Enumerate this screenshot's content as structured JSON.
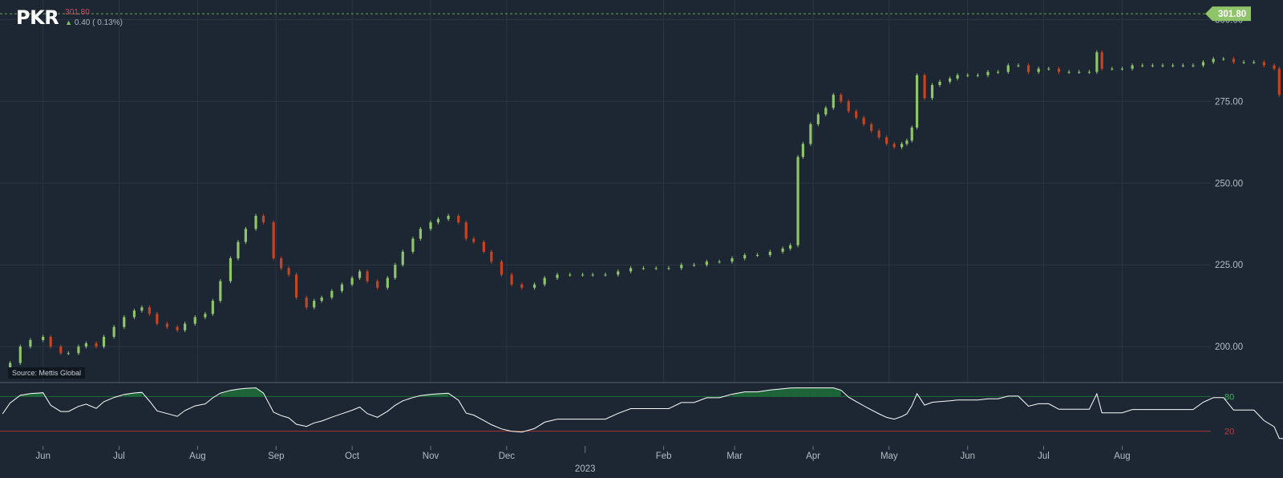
{
  "header": {
    "symbol": "PKR",
    "last_price": "301.80",
    "change": "0.40 ( 0.13%)",
    "change_direction_icon": "up-arrow-icon"
  },
  "source_label": "Source: Mettis Global",
  "price_tag": "301.80",
  "colors": {
    "background": "#1c2733",
    "up": "#8fc46a",
    "down": "#c8431f",
    "grid": "#2a3643",
    "oscillator_line": "#ffffff",
    "overbought_fill": "#1f6b3a",
    "oversold_line": "#c23b3b"
  },
  "chart_data": [
    {
      "type": "candlestick",
      "title": "",
      "y_axis_side": "right",
      "ylim": [
        189,
        306
      ],
      "y_ticks": [
        "200.00",
        "225.00",
        "250.00",
        "275.00",
        "300.00"
      ],
      "x_ticks": [
        "Jun",
        "Jul",
        "Aug",
        "Sep",
        "Oct",
        "Nov",
        "Dec",
        "Feb",
        "Mar",
        "Apr",
        "May",
        "Jun",
        "Jul",
        "Aug"
      ],
      "year_label": "2023",
      "last_price_line": 301.8,
      "grid": true,
      "x_start": "2022-05-15",
      "x_end": "2023-09-05",
      "closes": [
        [
          "2022-05-16",
          192
        ],
        [
          "2022-05-19",
          195
        ],
        [
          "2022-05-23",
          200
        ],
        [
          "2022-05-27",
          202
        ],
        [
          "2022-06-01",
          203
        ],
        [
          "2022-06-04",
          200
        ],
        [
          "2022-06-08",
          198
        ],
        [
          "2022-06-11",
          198
        ],
        [
          "2022-06-15",
          200
        ],
        [
          "2022-06-18",
          201
        ],
        [
          "2022-06-22",
          200
        ],
        [
          "2022-06-25",
          203
        ],
        [
          "2022-06-29",
          206
        ],
        [
          "2022-07-03",
          209
        ],
        [
          "2022-07-07",
          211
        ],
        [
          "2022-07-10",
          212
        ],
        [
          "2022-07-13",
          210
        ],
        [
          "2022-07-16",
          207
        ],
        [
          "2022-07-20",
          206
        ],
        [
          "2022-07-24",
          205
        ],
        [
          "2022-07-27",
          207
        ],
        [
          "2022-07-31",
          209
        ],
        [
          "2022-08-04",
          210
        ],
        [
          "2022-08-07",
          214
        ],
        [
          "2022-08-10",
          220
        ],
        [
          "2022-08-14",
          227
        ],
        [
          "2022-08-17",
          232
        ],
        [
          "2022-08-20",
          236
        ],
        [
          "2022-08-24",
          240
        ],
        [
          "2022-08-27",
          238
        ],
        [
          "2022-08-31",
          227
        ],
        [
          "2022-09-03",
          224
        ],
        [
          "2022-09-06",
          222
        ],
        [
          "2022-09-09",
          215
        ],
        [
          "2022-09-13",
          212
        ],
        [
          "2022-09-16",
          214
        ],
        [
          "2022-09-19",
          215
        ],
        [
          "2022-09-23",
          217
        ],
        [
          "2022-09-27",
          219
        ],
        [
          "2022-10-01",
          221
        ],
        [
          "2022-10-04",
          223
        ],
        [
          "2022-10-07",
          220
        ],
        [
          "2022-10-11",
          218
        ],
        [
          "2022-10-15",
          221
        ],
        [
          "2022-10-18",
          225
        ],
        [
          "2022-10-21",
          229
        ],
        [
          "2022-10-25",
          233
        ],
        [
          "2022-10-28",
          236
        ],
        [
          "2022-11-01",
          238
        ],
        [
          "2022-11-04",
          239
        ],
        [
          "2022-11-08",
          240
        ],
        [
          "2022-11-12",
          238
        ],
        [
          "2022-11-15",
          233
        ],
        [
          "2022-11-18",
          232
        ],
        [
          "2022-11-22",
          229
        ],
        [
          "2022-11-25",
          226
        ],
        [
          "2022-11-29",
          222
        ],
        [
          "2022-12-03",
          219
        ],
        [
          "2022-12-07",
          218
        ],
        [
          "2022-12-12",
          219
        ],
        [
          "2022-12-16",
          221
        ],
        [
          "2022-12-21",
          222
        ],
        [
          "2022-12-26",
          222
        ],
        [
          "2022-12-31",
          222
        ],
        [
          "2023-01-04",
          222
        ],
        [
          "2023-01-09",
          222
        ],
        [
          "2023-01-14",
          223
        ],
        [
          "2023-01-19",
          224
        ],
        [
          "2023-01-24",
          224
        ],
        [
          "2023-01-29",
          224
        ],
        [
          "2023-02-03",
          224
        ],
        [
          "2023-02-08",
          225
        ],
        [
          "2023-02-13",
          225
        ],
        [
          "2023-02-18",
          226
        ],
        [
          "2023-02-23",
          226
        ],
        [
          "2023-02-28",
          227
        ],
        [
          "2023-03-05",
          228
        ],
        [
          "2023-03-10",
          228
        ],
        [
          "2023-03-15",
          229
        ],
        [
          "2023-03-20",
          230
        ],
        [
          "2023-03-23",
          231
        ],
        [
          "2023-03-26",
          258
        ],
        [
          "2023-03-28",
          262
        ],
        [
          "2023-03-31",
          268
        ],
        [
          "2023-04-03",
          271
        ],
        [
          "2023-04-06",
          273
        ],
        [
          "2023-04-09",
          277
        ],
        [
          "2023-04-12",
          275
        ],
        [
          "2023-04-15",
          272
        ],
        [
          "2023-04-18",
          270
        ],
        [
          "2023-04-21",
          268
        ],
        [
          "2023-04-24",
          266
        ],
        [
          "2023-04-27",
          264
        ],
        [
          "2023-04-30",
          262
        ],
        [
          "2023-05-03",
          261
        ],
        [
          "2023-05-06",
          262
        ],
        [
          "2023-05-08",
          263
        ],
        [
          "2023-05-10",
          267
        ],
        [
          "2023-05-12",
          283
        ],
        [
          "2023-05-15",
          276
        ],
        [
          "2023-05-18",
          280
        ],
        [
          "2023-05-21",
          281
        ],
        [
          "2023-05-25",
          282
        ],
        [
          "2023-05-28",
          283
        ],
        [
          "2023-06-01",
          283
        ],
        [
          "2023-06-05",
          283
        ],
        [
          "2023-06-09",
          284
        ],
        [
          "2023-06-13",
          284
        ],
        [
          "2023-06-17",
          286
        ],
        [
          "2023-06-21",
          286
        ],
        [
          "2023-06-25",
          284
        ],
        [
          "2023-06-29",
          285
        ],
        [
          "2023-07-03",
          285
        ],
        [
          "2023-07-07",
          284
        ],
        [
          "2023-07-11",
          284
        ],
        [
          "2023-07-15",
          284
        ],
        [
          "2023-07-19",
          284
        ],
        [
          "2023-07-22",
          290
        ],
        [
          "2023-07-24",
          285
        ],
        [
          "2023-07-28",
          285
        ],
        [
          "2023-08-01",
          285
        ],
        [
          "2023-08-05",
          286
        ],
        [
          "2023-08-09",
          286
        ],
        [
          "2023-08-13",
          286
        ],
        [
          "2023-08-17",
          286
        ],
        [
          "2023-08-21",
          286
        ],
        [
          "2023-08-25",
          286
        ],
        [
          "2023-08-29",
          286
        ],
        [
          "2023-09-02",
          287
        ],
        [
          "2023-09-06",
          288
        ],
        [
          "2023-09-10",
          288
        ],
        [
          "2023-09-14",
          287
        ],
        [
          "2023-09-18",
          287
        ],
        [
          "2023-09-22",
          287
        ],
        [
          "2023-09-26",
          286
        ],
        [
          "2023-09-30",
          285
        ],
        [
          "2023-10-02",
          277
        ],
        [
          "2023-10-05",
          276
        ],
        [
          "2023-10-08",
          278
        ],
        [
          "2023-10-11",
          281
        ],
        [
          "2023-10-14",
          278
        ],
        [
          "2023-10-17",
          276
        ],
        [
          "2023-10-20",
          279
        ],
        [
          "2023-10-23",
          282
        ],
        [
          "2023-10-26",
          285
        ],
        [
          "2023-10-29",
          287
        ],
        [
          "2023-11-01",
          288
        ],
        [
          "2023-11-04",
          287
        ],
        [
          "2023-11-07",
          288
        ],
        [
          "2023-11-10",
          288
        ],
        [
          "2023-11-13",
          286
        ],
        [
          "2023-11-16",
          287
        ],
        [
          "2023-11-19",
          288
        ],
        [
          "2023-11-22",
          293
        ],
        [
          "2023-11-25",
          296
        ],
        [
          "2023-11-28",
          298
        ],
        [
          "2023-12-01",
          299
        ],
        [
          "2023-12-04",
          301
        ],
        [
          "2023-12-07",
          301.8
        ]
      ]
    },
    {
      "type": "line",
      "title": "",
      "ylim": [
        0,
        100
      ],
      "y_ticks": [
        "80",
        "20"
      ],
      "overbought_level": 80,
      "oversold_level": 20
    }
  ]
}
